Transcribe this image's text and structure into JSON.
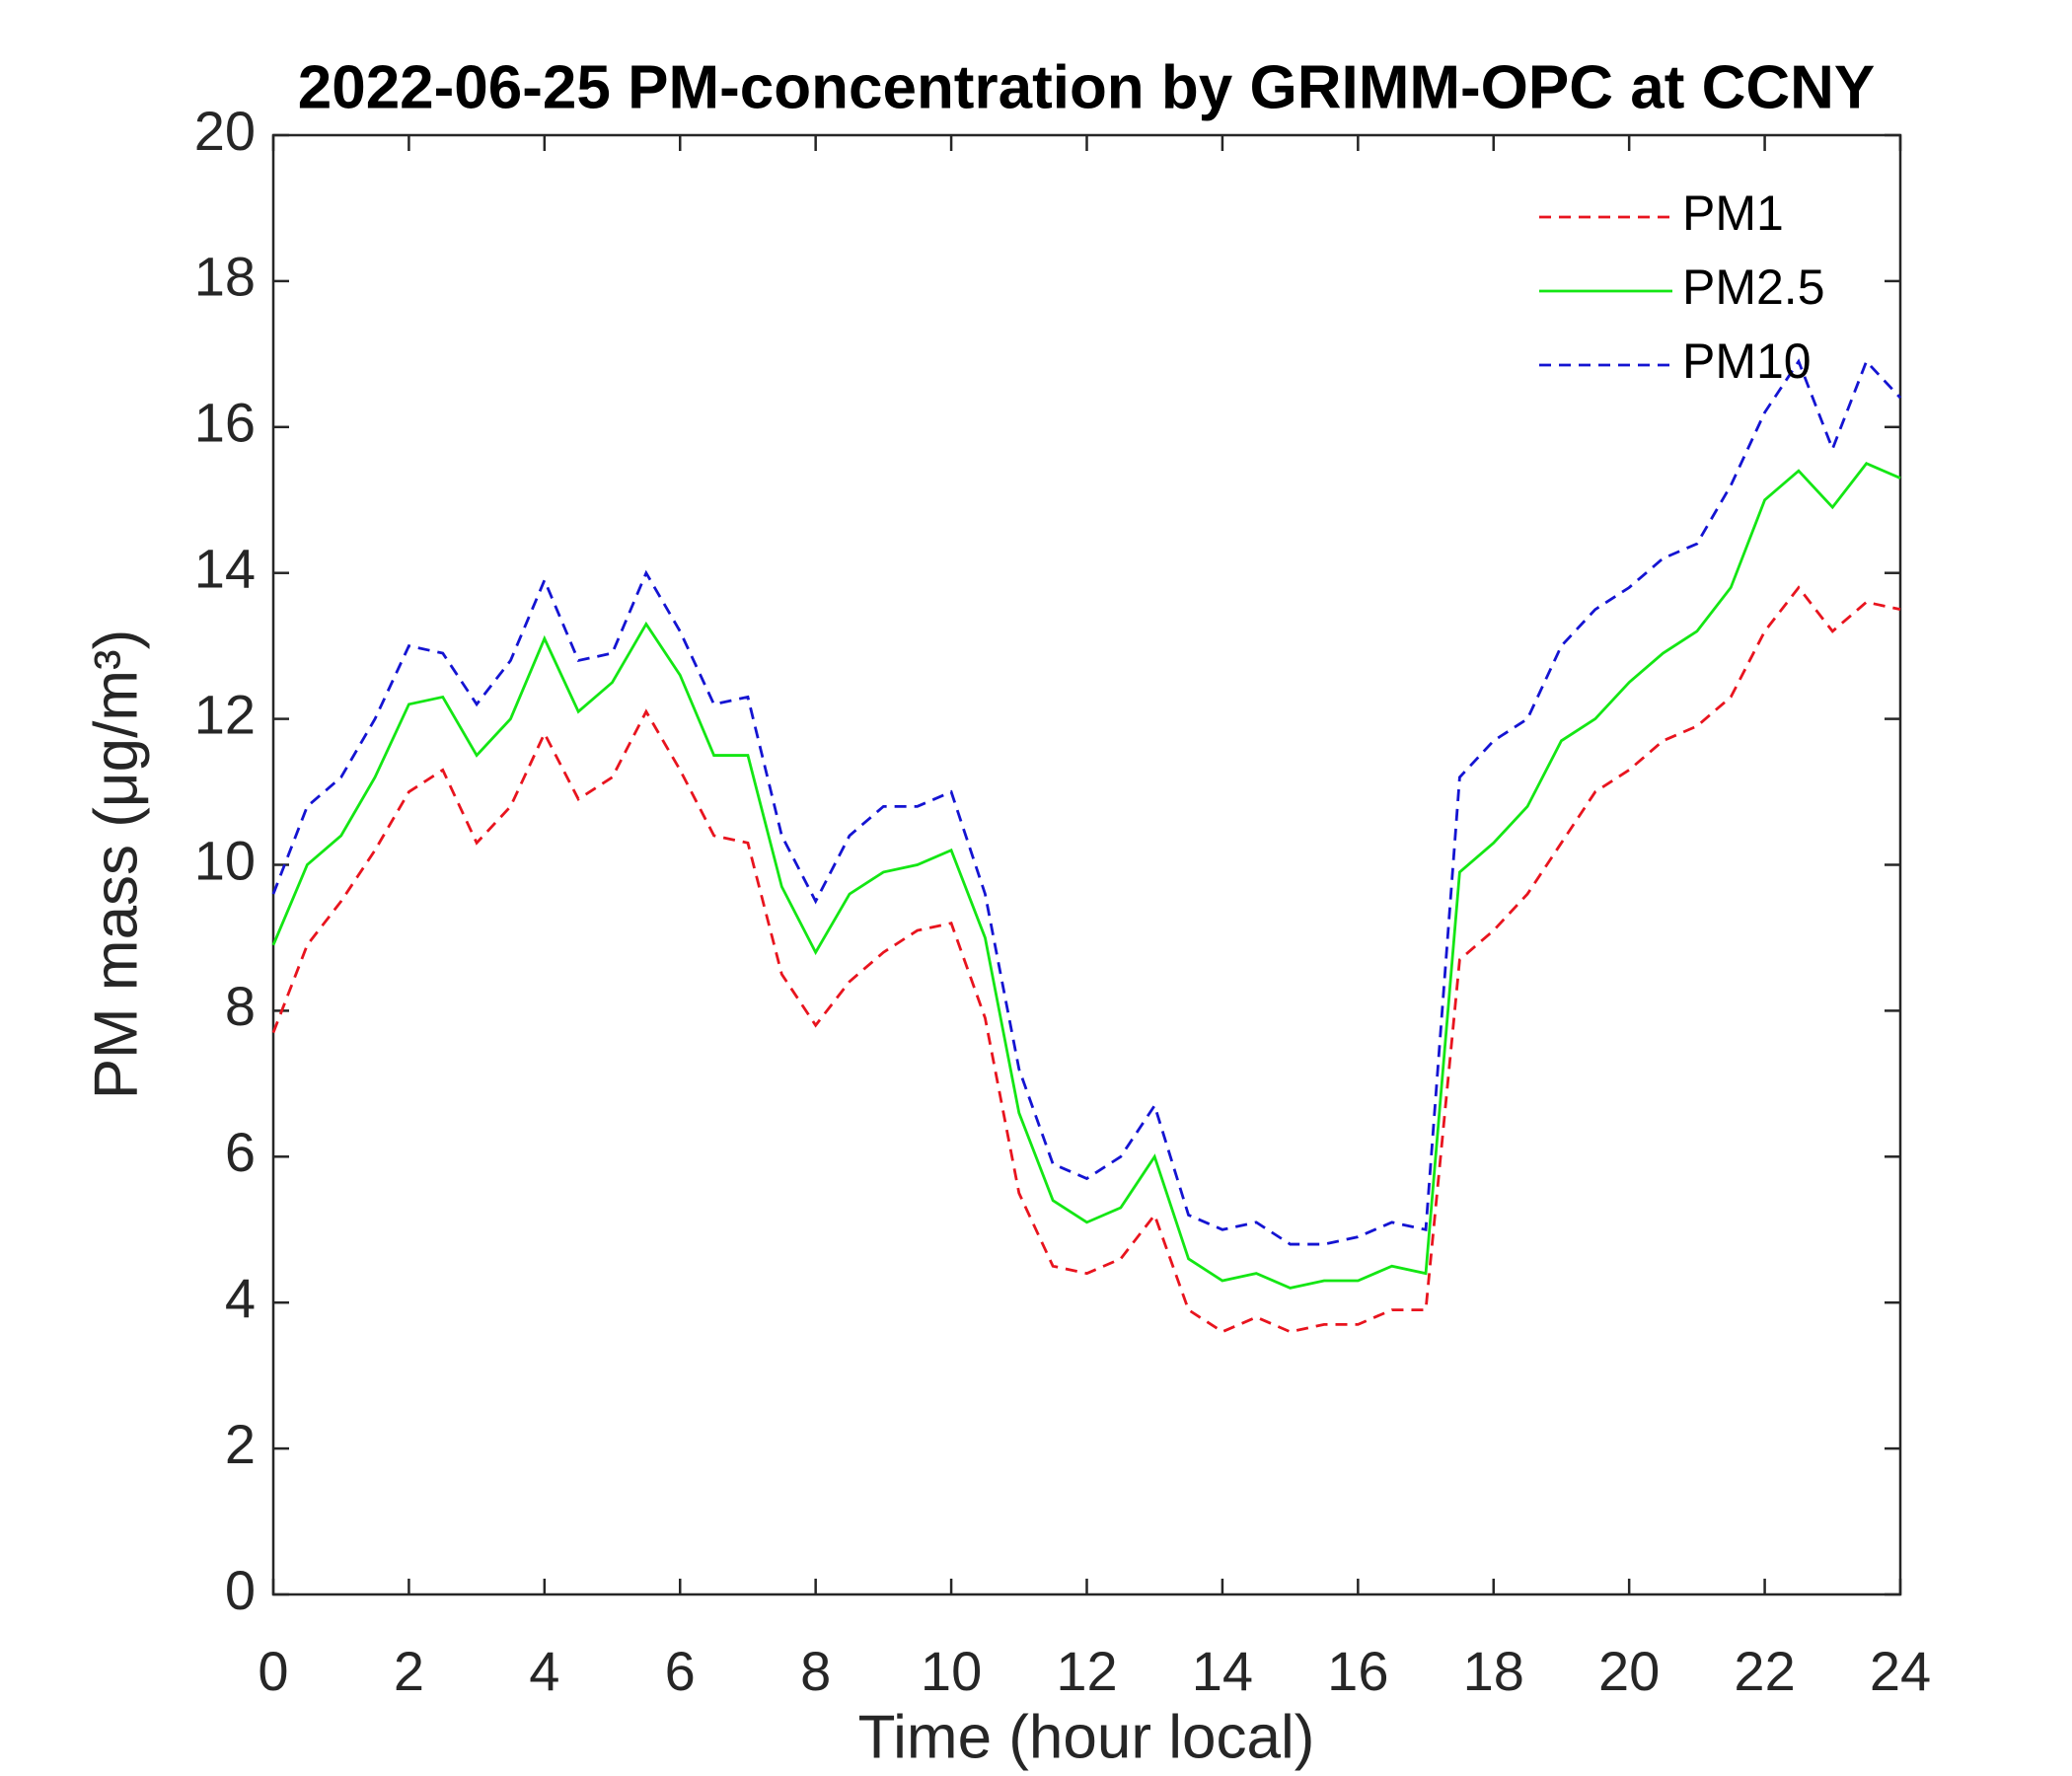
{
  "chart_data": {
    "type": "line",
    "title": "2022-06-25 PM-concentration by GRIMM-OPC at CCNY",
    "xlabel": "Time (hour local)",
    "ylabel": "PM mass (μg/m³)",
    "x": [
      0,
      0.5,
      1,
      1.5,
      2,
      2.5,
      3,
      3.5,
      4,
      4.5,
      5,
      5.5,
      6,
      6.5,
      7,
      7.5,
      8,
      8.5,
      9,
      9.5,
      10,
      10.5,
      11,
      11.5,
      12,
      12.5,
      13,
      13.5,
      14,
      14.5,
      15,
      15.5,
      16,
      16.5,
      17,
      17.5,
      18,
      18.5,
      19,
      19.5,
      20,
      20.5,
      21,
      21.5,
      22,
      22.5,
      23,
      23.5,
      24
    ],
    "series": [
      {
        "name": "PM1",
        "color": "#e8141e",
        "linestyle": "dashed",
        "values": [
          7.7,
          8.9,
          9.5,
          10.2,
          11.0,
          11.3,
          10.3,
          10.8,
          11.8,
          10.9,
          11.2,
          12.1,
          11.3,
          10.4,
          10.3,
          8.5,
          7.8,
          8.4,
          8.8,
          9.1,
          9.2,
          7.9,
          5.5,
          4.5,
          4.4,
          4.6,
          5.2,
          3.9,
          3.6,
          3.8,
          3.6,
          3.7,
          3.7,
          3.9,
          3.9,
          8.7,
          9.1,
          9.6,
          10.3,
          11.0,
          11.3,
          11.7,
          11.9,
          12.3,
          13.2,
          13.8,
          13.2,
          13.6,
          13.5
        ]
      },
      {
        "name": "PM2.5",
        "color": "#14e614",
        "linestyle": "solid",
        "values": [
          8.9,
          10.0,
          10.4,
          11.2,
          12.2,
          12.3,
          11.5,
          12.0,
          13.1,
          12.1,
          12.5,
          13.3,
          12.6,
          11.5,
          11.5,
          9.7,
          8.8,
          9.6,
          9.9,
          10.0,
          10.2,
          9.0,
          6.6,
          5.4,
          5.1,
          5.3,
          6.0,
          4.6,
          4.3,
          4.4,
          4.2,
          4.3,
          4.3,
          4.5,
          4.4,
          9.9,
          10.3,
          10.8,
          11.7,
          12.0,
          12.5,
          12.9,
          13.2,
          13.8,
          15.0,
          15.4,
          14.9,
          15.5,
          15.3
        ]
      },
      {
        "name": "PM10",
        "color": "#1414d2",
        "linestyle": "dashed",
        "values": [
          9.6,
          10.8,
          11.2,
          12.0,
          13.0,
          12.9,
          12.2,
          12.8,
          13.9,
          12.8,
          12.9,
          14.0,
          13.2,
          12.2,
          12.3,
          10.4,
          9.5,
          10.4,
          10.8,
          10.8,
          11.0,
          9.6,
          7.2,
          5.9,
          5.7,
          6.0,
          6.7,
          5.2,
          5.0,
          5.1,
          4.8,
          4.8,
          4.9,
          5.1,
          5.0,
          11.2,
          11.7,
          12.0,
          13.0,
          13.5,
          13.8,
          14.2,
          14.4,
          15.2,
          16.2,
          16.9,
          15.7,
          16.9,
          16.4
        ]
      }
    ],
    "xlim": [
      0,
      24
    ],
    "xticks": [
      0,
      2,
      4,
      6,
      8,
      10,
      12,
      14,
      16,
      18,
      20,
      22,
      24
    ],
    "ylim": [
      0,
      20
    ],
    "yticks": [
      0,
      2,
      4,
      6,
      8,
      10,
      12,
      14,
      16,
      18,
      20
    ],
    "legend": "upper right"
  }
}
